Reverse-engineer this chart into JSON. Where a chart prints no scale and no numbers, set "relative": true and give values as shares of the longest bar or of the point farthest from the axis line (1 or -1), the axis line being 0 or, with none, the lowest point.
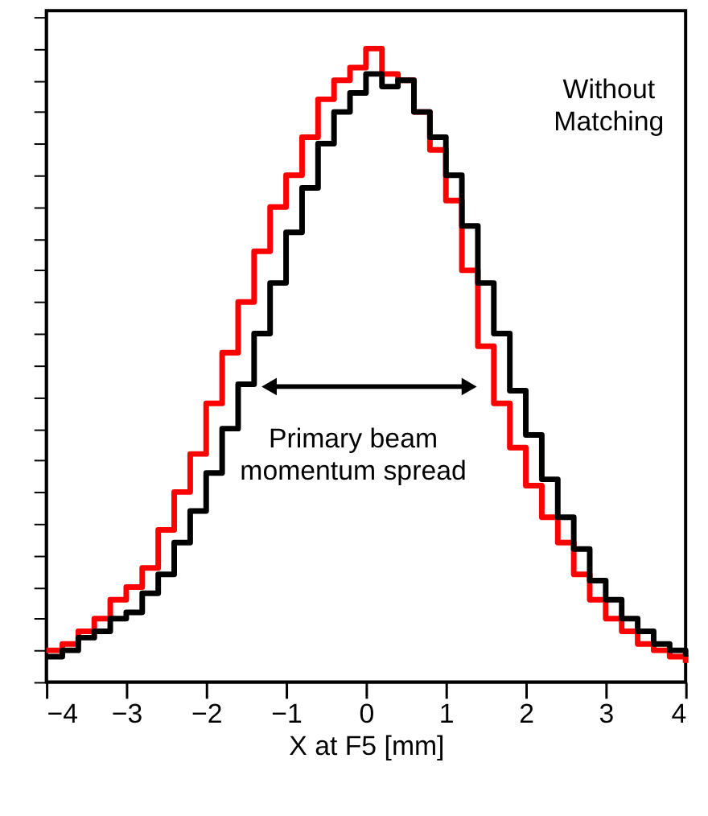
{
  "chart_data": {
    "type": "step",
    "relative": true,
    "xlabel": "X at F5 [mm]",
    "xlim": [
      -4,
      4
    ],
    "xticks": [
      -4,
      -3,
      -2,
      -1,
      0,
      1,
      2,
      3,
      4
    ],
    "tick_labels": "x",
    "grid": false,
    "legend": false,
    "line_style": "solid",
    "marker": "none",
    "annotations": [
      "Without Matching",
      "Primary beam momentum spread"
    ],
    "x": [
      -4,
      -3.8,
      -3.6,
      -3.4,
      -3.2,
      -3,
      -2.8,
      -2.6,
      -2.4,
      -2.2,
      -2,
      -1.8,
      -1.6,
      -1.4,
      -1.2,
      -1,
      -0.8,
      -0.6,
      -0.4,
      -0.2,
      0,
      0.2,
      0.4,
      0.6,
      0.8,
      1,
      1.2,
      1.4,
      1.6,
      1.8,
      2,
      2.2,
      2.4,
      2.6,
      2.8,
      3,
      3.2,
      3.4,
      3.6,
      3.8,
      4
    ],
    "series": [
      {
        "color": "#ff0000",
        "values": [
          0.05,
          0.06,
          0.08,
          0.1,
          0.13,
          0.15,
          0.18,
          0.24,
          0.3,
          0.36,
          0.44,
          0.52,
          0.6,
          0.68,
          0.75,
          0.8,
          0.86,
          0.92,
          0.95,
          0.97,
          1.0,
          0.96,
          0.95,
          0.9,
          0.84,
          0.76,
          0.65,
          0.53,
          0.44,
          0.37,
          0.31,
          0.26,
          0.22,
          0.17,
          0.13,
          0.1,
          0.08,
          0.06,
          0.05,
          0.04,
          0.03
        ]
      },
      {
        "color": "#000000",
        "values": [
          0.04,
          0.05,
          0.07,
          0.08,
          0.1,
          0.11,
          0.14,
          0.17,
          0.22,
          0.27,
          0.33,
          0.4,
          0.47,
          0.55,
          0.63,
          0.71,
          0.78,
          0.85,
          0.9,
          0.93,
          0.96,
          0.94,
          0.95,
          0.9,
          0.86,
          0.8,
          0.72,
          0.63,
          0.55,
          0.46,
          0.39,
          0.32,
          0.26,
          0.21,
          0.16,
          0.13,
          0.1,
          0.08,
          0.06,
          0.05,
          0.04
        ]
      }
    ]
  }
}
